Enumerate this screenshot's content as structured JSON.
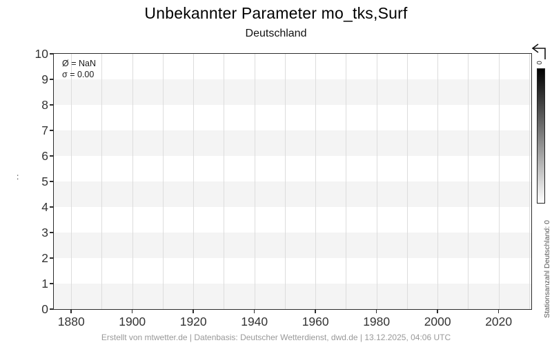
{
  "header": {
    "title": "Unbekannter Parameter mo_tks,Surf",
    "subtitle": "Deutschland"
  },
  "annotation": {
    "mean_line": "Ø = NaN",
    "std_line": "σ = 0.00"
  },
  "y_axis_label": ":",
  "footer": {
    "credit": "Erstellt von mtwetter.de | Datenbasis: Deutscher Wetterdienst, dwd.de | 13.12.2025, 04:06 UTC"
  },
  "colorbar": {
    "label": "Stationsanzahl Deutschland: 0",
    "tick_top": "0",
    "gradient_top": "#000000",
    "gradient_bottom": "#ffffff"
  },
  "colors": {
    "band": "#f4f4f4",
    "grid": "#dcdcdc",
    "spine": "#2b2b2b",
    "tick": "#333333",
    "footer": "#999999",
    "cbarlabel": "#555555",
    "anno": "#1a1a1a"
  },
  "chart_data": {
    "type": "line",
    "title": "Unbekannter Parameter mo_tks,Surf",
    "subtitle": "Deutschland",
    "series": [],
    "stats": {
      "mean": "NaN",
      "std": "0.00"
    },
    "x_ticks": [
      1880,
      1900,
      1920,
      1940,
      1960,
      1980,
      2000,
      2020
    ],
    "x_gridline_step": 10,
    "xlim": [
      1874.3,
      2030.7
    ],
    "y_ticks": [
      0,
      1,
      2,
      3,
      4,
      5,
      6,
      7,
      8,
      9,
      10
    ],
    "ylim": [
      0,
      10
    ],
    "ylabel": ":",
    "grid": "vertical-only",
    "background_bands": "alternating horizontal stripes, one y-unit tall, gray on 1-0,3-2,5-4,7-6,9-8",
    "legend": "none",
    "colorbar": {
      "label": "Stationsanzahl Deutschland: 0",
      "range_shown_tick": 0
    }
  }
}
